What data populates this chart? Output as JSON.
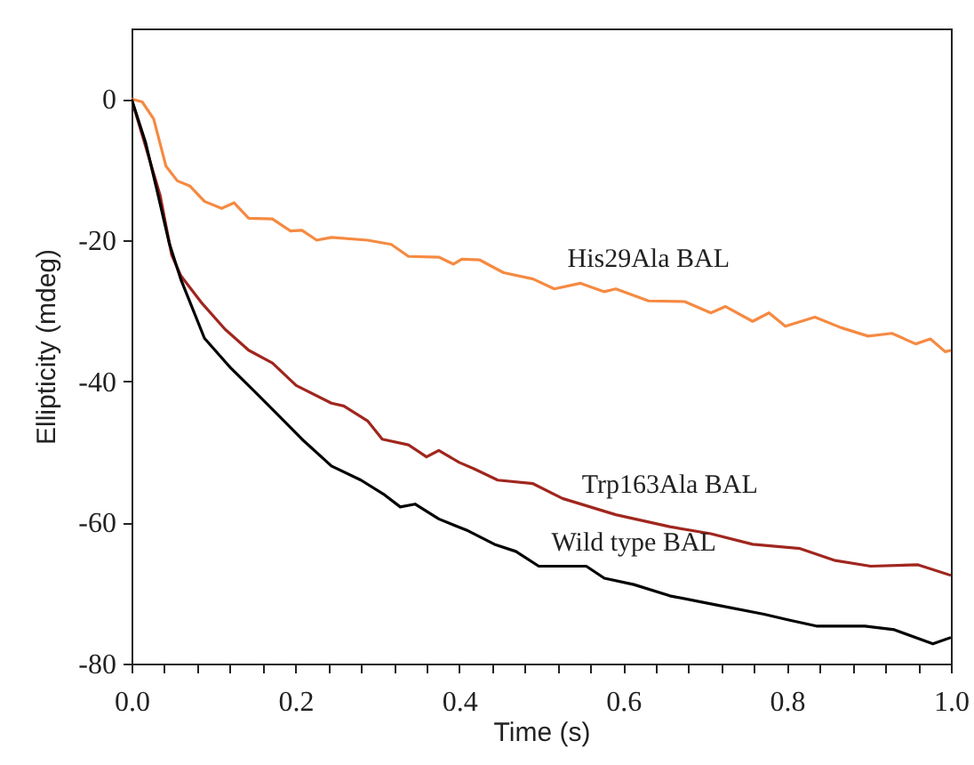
{
  "chart_data": {
    "type": "line",
    "xlabel": "Time (s)",
    "ylabel": "Ellipticity (mdeg)",
    "xlim": [
      0,
      1
    ],
    "ylim": [
      -80,
      10
    ],
    "xticks": [
      {
        "value": 0,
        "label": "0.0"
      },
      {
        "value": 0.04,
        "label": null
      },
      {
        "value": 0.08,
        "label": null
      },
      {
        "value": 0.12,
        "label": null
      },
      {
        "value": 0.16,
        "label": null
      },
      {
        "value": 0.2,
        "label": "0.2"
      },
      {
        "value": 0.24,
        "label": null
      },
      {
        "value": 0.28,
        "label": null
      },
      {
        "value": 0.32,
        "label": null
      },
      {
        "value": 0.36,
        "label": null
      },
      {
        "value": 0.4,
        "label": "0.4"
      },
      {
        "value": 0.44,
        "label": null
      },
      {
        "value": 0.48,
        "label": null
      },
      {
        "value": 0.52,
        "label": null
      },
      {
        "value": 0.56,
        "label": null
      },
      {
        "value": 0.6,
        "label": "0.6"
      },
      {
        "value": 0.64,
        "label": null
      },
      {
        "value": 0.68,
        "label": null
      },
      {
        "value": 0.72,
        "label": null
      },
      {
        "value": 0.76,
        "label": null
      },
      {
        "value": 0.8,
        "label": "0.8"
      },
      {
        "value": 0.84,
        "label": null
      },
      {
        "value": 0.88,
        "label": null
      },
      {
        "value": 0.92,
        "label": null
      },
      {
        "value": 0.96,
        "label": null
      },
      {
        "value": 1,
        "label": "1.0"
      }
    ],
    "yticks": [
      -80,
      -60,
      -40,
      -20,
      0
    ],
    "grid": false,
    "marker": "none",
    "line_style": "solid",
    "series": [
      {
        "name": "His29Ala BAL",
        "color": "#f58a42",
        "x": [
          0,
          0.013,
          0.027,
          0.042,
          0.056,
          0.071,
          0.089,
          0.11,
          0.125,
          0.143,
          0.172,
          0.194,
          0.208,
          0.226,
          0.244,
          0.288,
          0.317,
          0.338,
          0.375,
          0.393,
          0.403,
          0.425,
          0.454,
          0.49,
          0.516,
          0.548,
          0.577,
          0.591,
          0.631,
          0.675,
          0.707,
          0.725,
          0.758,
          0.778,
          0.798,
          0.834,
          0.866,
          0.899,
          0.928,
          0.957,
          0.975,
          0.993,
          1
        ],
        "values": [
          0,
          -0.4,
          -2.8,
          -9.5,
          -11.6,
          -12.3,
          -14.5,
          -15.5,
          -14.7,
          -16.9,
          -17,
          -18.7,
          -18.6,
          -20,
          -19.6,
          -20,
          -20.6,
          -22.3,
          -22.4,
          -23.4,
          -22.7,
          -22.8,
          -24.6,
          -25.5,
          -26.9,
          -26.1,
          -27.3,
          -26.9,
          -28.6,
          -28.7,
          -30.3,
          -29.4,
          -31.5,
          -30.3,
          -32.2,
          -30.9,
          -32.4,
          -33.6,
          -33.2,
          -34.7,
          -34,
          -35.8,
          -35.6
        ]
      },
      {
        "name": "Trp163Ala BAL",
        "color": "#a0261e",
        "x": [
          0,
          0.02,
          0.035,
          0.049,
          0.06,
          0.085,
          0.114,
          0.143,
          0.172,
          0.201,
          0.244,
          0.259,
          0.288,
          0.306,
          0.338,
          0.36,
          0.375,
          0.4,
          0.418,
          0.447,
          0.49,
          0.526,
          0.591,
          0.657,
          0.707,
          0.758,
          0.816,
          0.859,
          0.902,
          0.96,
          1
        ],
        "values": [
          0,
          -7.8,
          -13.7,
          -22.1,
          -25,
          -28.8,
          -32.6,
          -35.6,
          -37.4,
          -40.6,
          -43.1,
          -43.5,
          -45.6,
          -48.2,
          -49,
          -50.7,
          -49.8,
          -51.5,
          -52.4,
          -54,
          -54.5,
          -56.6,
          -58.9,
          -60.6,
          -61.6,
          -63.1,
          -63.7,
          -65.4,
          -66.2,
          -66,
          -67.5
        ]
      },
      {
        "name": "Wild type BAL",
        "color": "#000000",
        "x": [
          0,
          0.017,
          0.031,
          0.046,
          0.06,
          0.089,
          0.121,
          0.15,
          0.179,
          0.208,
          0.244,
          0.28,
          0.309,
          0.328,
          0.346,
          0.375,
          0.411,
          0.443,
          0.469,
          0.497,
          0.555,
          0.577,
          0.613,
          0.657,
          0.714,
          0.772,
          0.801,
          0.837,
          0.895,
          0.931,
          0.978,
          1
        ],
        "values": [
          0,
          -6.1,
          -12.9,
          -20.4,
          -25.5,
          -33.9,
          -38.1,
          -41.4,
          -44.8,
          -48.2,
          -52,
          -54,
          -56.1,
          -57.8,
          -57.4,
          -59.5,
          -61.2,
          -63.1,
          -64.1,
          -66.2,
          -66.2,
          -67.9,
          -68.8,
          -70.4,
          -71.7,
          -73,
          -73.8,
          -74.7,
          -74.7,
          -75.2,
          -77.2,
          -76.3
        ]
      }
    ]
  }
}
